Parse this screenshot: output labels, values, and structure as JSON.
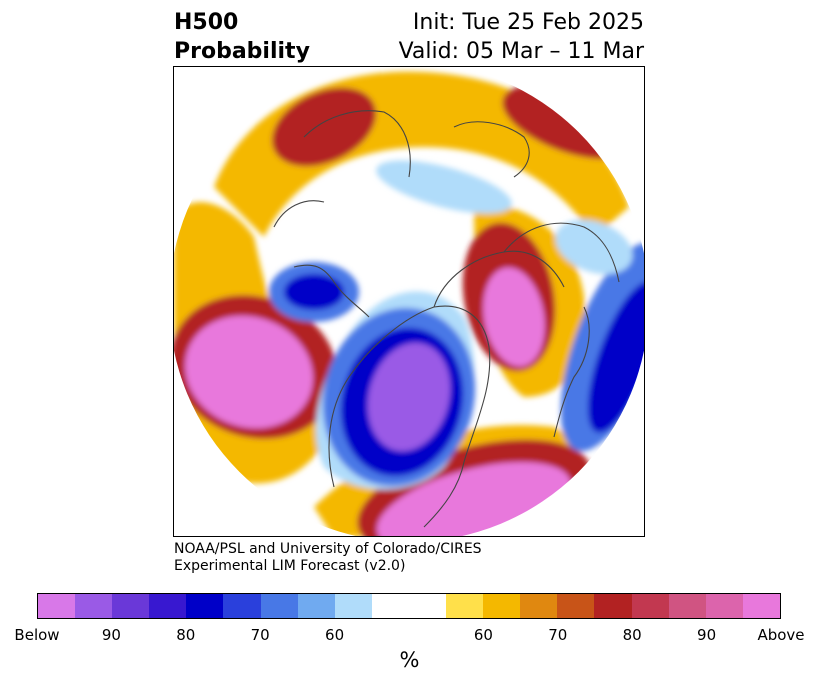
{
  "header": {
    "title_line1": "H500",
    "title_line2": "Probability",
    "init": "Init: Tue 25 Feb 2025",
    "valid": "Valid: 05 Mar – 11 Mar"
  },
  "credit": {
    "line1": "NOAA/PSL and University of Colorado/CIRES",
    "line2": "Experimental LIM Forecast (v2.0)"
  },
  "colorbar": {
    "below_colors": [
      "#d878e8",
      "#9a5ae6",
      "#6a38d8",
      "#3818d0",
      "#0000c8",
      "#2a40dc",
      "#4878e6",
      "#70aaf0",
      "#b0dcfa"
    ],
    "neutral_color": "#ffffff",
    "above_colors": [
      "#ffe04a",
      "#f4b800",
      "#e08810",
      "#c85418",
      "#b22222",
      "#c23850",
      "#d05482",
      "#dc64ac",
      "#e878dc"
    ],
    "tick_labels": [
      "Below",
      "90",
      "80",
      "70",
      "60",
      "60",
      "70",
      "80",
      "90",
      "Above"
    ],
    "unit": "%"
  },
  "map": {
    "projection": "north-polar-stereographic",
    "colors": {
      "above_strong": "#e878dc",
      "above_mid": "#b22222",
      "above_weak": "#f4b800",
      "below_strong": "#0000c8",
      "below_mid": "#4878e6",
      "below_weak": "#b0dcfa",
      "below_very_strong": "#9a5ae6",
      "coastline": "#444444"
    }
  }
}
